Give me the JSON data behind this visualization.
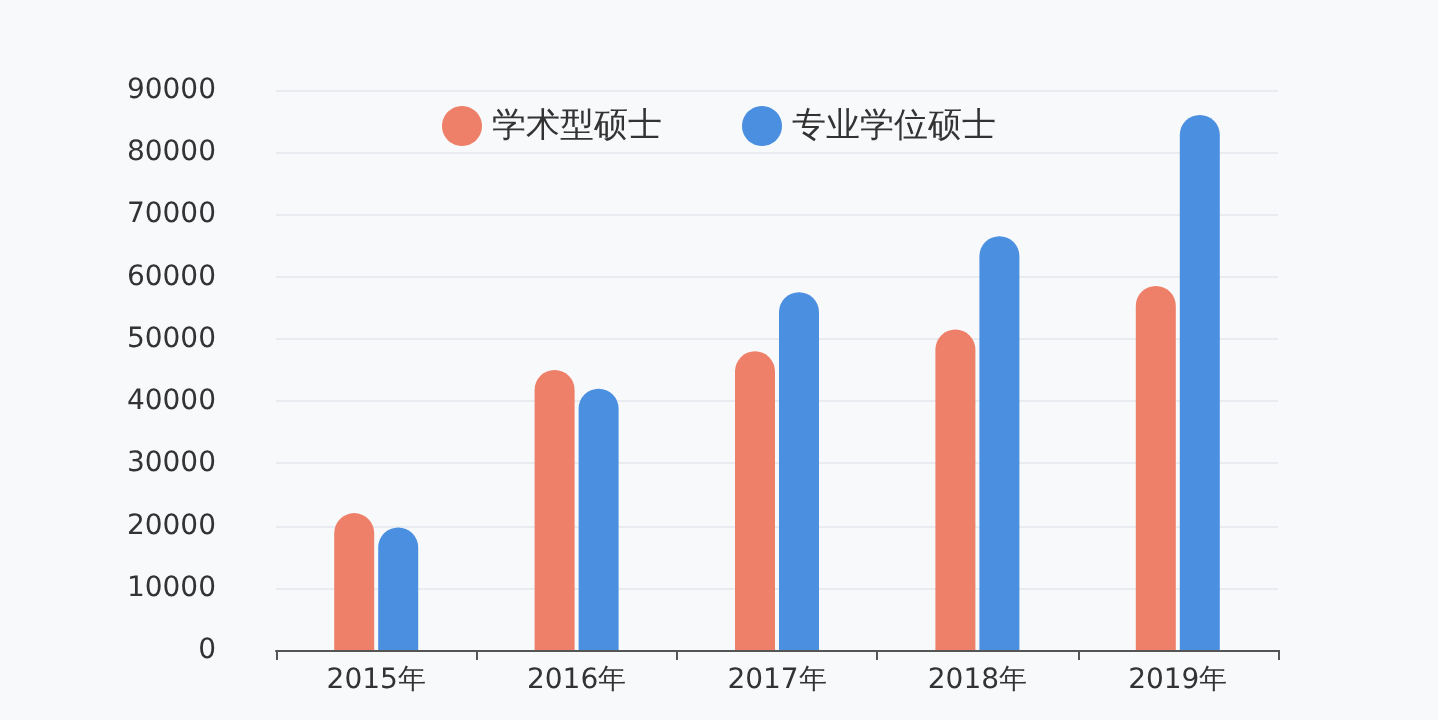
{
  "chart_data": {
    "type": "bar",
    "categories": [
      "2015年",
      "2016年",
      "2017年",
      "2018年",
      "2019年"
    ],
    "series": [
      {
        "name": "学术型硕士",
        "color": "#ee7f68",
        "values": [
          22000,
          45000,
          48000,
          51500,
          58500
        ]
      },
      {
        "name": "专业学位硕士",
        "color": "#4a8fe0",
        "values": [
          19700,
          42000,
          57500,
          66500,
          86000
        ]
      }
    ],
    "ylim": [
      0,
      90000
    ],
    "yticks": [
      0,
      10000,
      20000,
      30000,
      40000,
      50000,
      60000,
      70000,
      80000,
      90000
    ],
    "grid": "y",
    "legend": "top"
  }
}
